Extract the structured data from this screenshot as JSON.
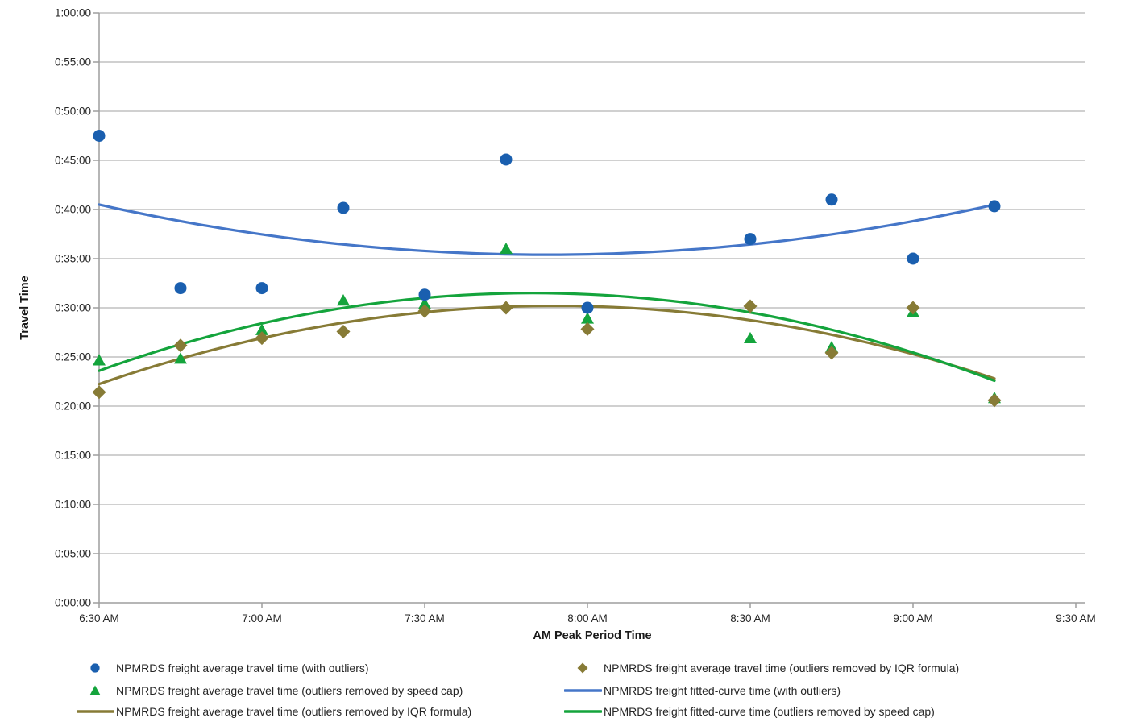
{
  "chart_data": {
    "type": "scatter",
    "title": "",
    "xlabel": "AM Peak Period Time",
    "ylabel": "Travel Time",
    "grid": "horizontal-only",
    "legend_position": "bottom-two-columns",
    "x_range_minutes": [
      390,
      570
    ],
    "y_range_minutes": [
      0,
      60
    ],
    "x_ticks": [
      "6:30 AM",
      "7:00 AM",
      "7:30 AM",
      "8:00 AM",
      "8:30 AM",
      "9:00 AM",
      "9:30 AM"
    ],
    "x_tick_minutes": [
      390,
      420,
      450,
      480,
      510,
      540,
      570
    ],
    "y_ticks": [
      "0:00:00",
      "0:05:00",
      "0:10:00",
      "0:15:00",
      "0:20:00",
      "0:25:00",
      "0:30:00",
      "0:35:00",
      "0:40:00",
      "0:45:00",
      "0:50:00",
      "0:55:00",
      "1:00:00"
    ],
    "point_times": [
      "6:30 AM",
      "6:45 AM",
      "7:00 AM",
      "7:15 AM",
      "7:30 AM",
      "7:45 AM",
      "8:00 AM",
      "8:30 AM",
      "8:45 AM",
      "9:00 AM",
      "9:15 AM"
    ],
    "point_minutes": [
      390,
      405,
      420,
      435,
      450,
      465,
      480,
      510,
      525,
      540,
      555
    ],
    "series": [
      {
        "name": "NPMRDS freight average travel time (with outliers)",
        "marker": "circle",
        "color": "#1A5FAF",
        "values_hms": [
          "0:47:30",
          "0:32:00",
          "0:32:00",
          "0:40:10",
          "0:31:20",
          "0:45:05",
          "0:30:00",
          "0:37:00",
          "0:41:00",
          "0:35:00",
          "0:40:20"
        ]
      },
      {
        "name": "NPMRDS freight average travel time (outliers removed by IQR formula)",
        "marker": "diamond",
        "color": "#877B36",
        "values_hms": [
          "0:21:25",
          "0:26:10",
          "0:26:55",
          "0:27:35",
          "0:29:40",
          "0:30:00",
          "0:27:50",
          "0:30:10",
          "0:25:25",
          "0:30:00",
          "0:20:35"
        ]
      },
      {
        "name": "NPMRDS freight average travel time (outliers removed by speed cap)",
        "marker": "triangle",
        "color": "#14A43C",
        "values_hms": [
          "0:24:40",
          "0:24:50",
          "0:27:45",
          "0:30:45",
          "0:30:25",
          "0:36:00",
          "0:28:55",
          "0:26:55",
          "0:26:00",
          "0:29:35",
          "0:20:50"
        ]
      }
    ],
    "fitted_curves": [
      {
        "name": "NPMRDS freight fitted-curve time (with outliers)",
        "color": "#4576C8",
        "t_range_minutes": [
          390,
          555
        ],
        "vertex": [
          472.5,
          35.4
        ],
        "a": 0.000749,
        "sampled_hms_at_point_times": [
          "0:40:30",
          "0:38:49",
          "0:37:28",
          "0:36:27",
          "0:35:47",
          "0:35:26",
          "0:35:26",
          "0:36:27",
          "0:37:28",
          "0:38:49",
          "0:40:25"
        ]
      },
      {
        "name": "NPMRDS freight average travel time (outliers removed by IQR formula)",
        "color": "#877B36",
        "t_range_minutes": [
          390,
          555
        ],
        "vertex": [
          474,
          30.2
        ],
        "a": -0.001127,
        "sampled_hms_at_point_times": [
          "0:22:15",
          "0:24:50",
          "0:26:55",
          "0:28:30",
          "0:29:35",
          "0:30:05",
          "0:30:10",
          "0:28:45",
          "0:27:15",
          "0:25:15",
          "0:22:50"
        ]
      },
      {
        "name": "NPMRDS freight fitted-curve time (outliers removed by speed cap)",
        "color": "#14A43C",
        "t_range_minutes": [
          390,
          555
        ],
        "vertex": [
          470,
          31.5
        ],
        "a": -0.001234,
        "sampled_hms_at_point_times": [
          "0:23:35",
          "0:26:15",
          "0:28:25",
          "0:30:00",
          "0:31:00",
          "0:31:30",
          "0:31:25",
          "0:29:30",
          "0:27:45",
          "0:25:25",
          "0:22:20"
        ]
      }
    ],
    "legend": [
      {
        "label": "NPMRDS freight average travel time (with outliers)",
        "marker": "circle",
        "color": "#1A5FAF"
      },
      {
        "label": "NPMRDS freight average travel time (outliers removed by IQR formula)",
        "marker": "diamond",
        "color": "#877B36"
      },
      {
        "label": "NPMRDS freight average travel time (outliers removed by speed cap)",
        "marker": "triangle",
        "color": "#14A43C"
      },
      {
        "label": "NPMRDS freight fitted-curve time (with outliers)",
        "marker": "line",
        "color": "#4576C8"
      },
      {
        "label": "NPMRDS freight average travel time (outliers removed by IQR formula)",
        "marker": "line",
        "color": "#877B36"
      },
      {
        "label": "NPMRDS freight fitted-curve time (outliers removed by speed cap)",
        "marker": "line",
        "color": "#14A43C"
      }
    ]
  },
  "colors": {
    "background": "#FFFFFF",
    "gridline": "#C9C9C9",
    "axis": "#9E9E9E",
    "tick_text": "#262626",
    "legend_text": "#262626"
  }
}
